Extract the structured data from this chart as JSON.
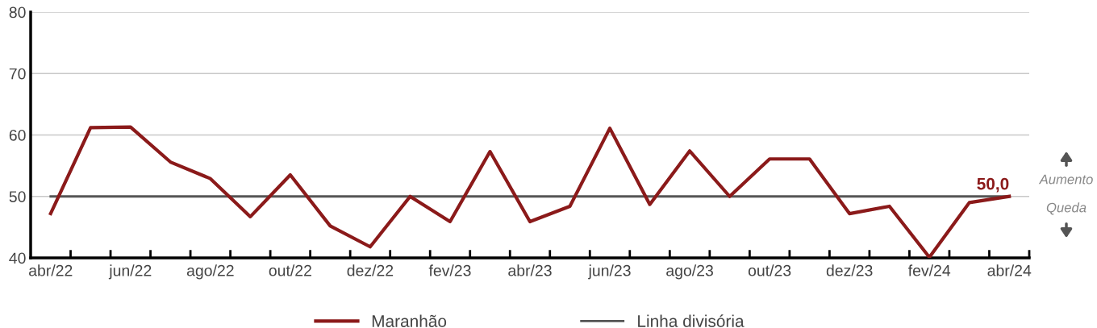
{
  "chart_data": {
    "type": "line",
    "categories": [
      "abr/22",
      null,
      "jun/22",
      null,
      "ago/22",
      null,
      "out/22",
      null,
      "dez/22",
      null,
      "fev/23",
      null,
      "abr/23",
      null,
      "jun/23",
      null,
      "ago/23",
      null,
      "out/23",
      null,
      "dez/23",
      null,
      "fev/24",
      null,
      "abr/24"
    ],
    "series": [
      {
        "name": "Maranhão",
        "color": "#8b1a1a",
        "values": [
          47.2,
          61.2,
          61.3,
          55.6,
          52.9,
          46.7,
          53.5,
          45.2,
          41.8,
          50.0,
          45.9,
          57.3,
          45.9,
          48.4,
          61.1,
          48.7,
          57.4,
          50.0,
          56.1,
          56.1,
          47.2,
          48.4,
          40.1,
          49.0,
          50.0
        ],
        "value_labels": [
          null,
          null,
          null,
          null,
          null,
          null,
          null,
          null,
          null,
          null,
          null,
          null,
          null,
          null,
          null,
          null,
          null,
          null,
          null,
          null,
          null,
          null,
          null,
          null,
          "50,0"
        ]
      },
      {
        "name": "Linha divisória",
        "color": "#555555",
        "values": [
          50,
          50,
          50,
          50,
          50,
          50,
          50,
          50,
          50,
          50,
          50,
          50,
          50,
          50,
          50,
          50,
          50,
          50,
          50,
          50,
          50,
          50,
          50,
          50,
          50
        ]
      }
    ],
    "ylim": [
      40,
      80
    ],
    "yticks": [
      40,
      50,
      60,
      70,
      80
    ],
    "grid": "y",
    "legend": "bottom",
    "marker": "none",
    "line_style": "solid",
    "annotations": [
      "Aumento",
      "Queda"
    ]
  }
}
